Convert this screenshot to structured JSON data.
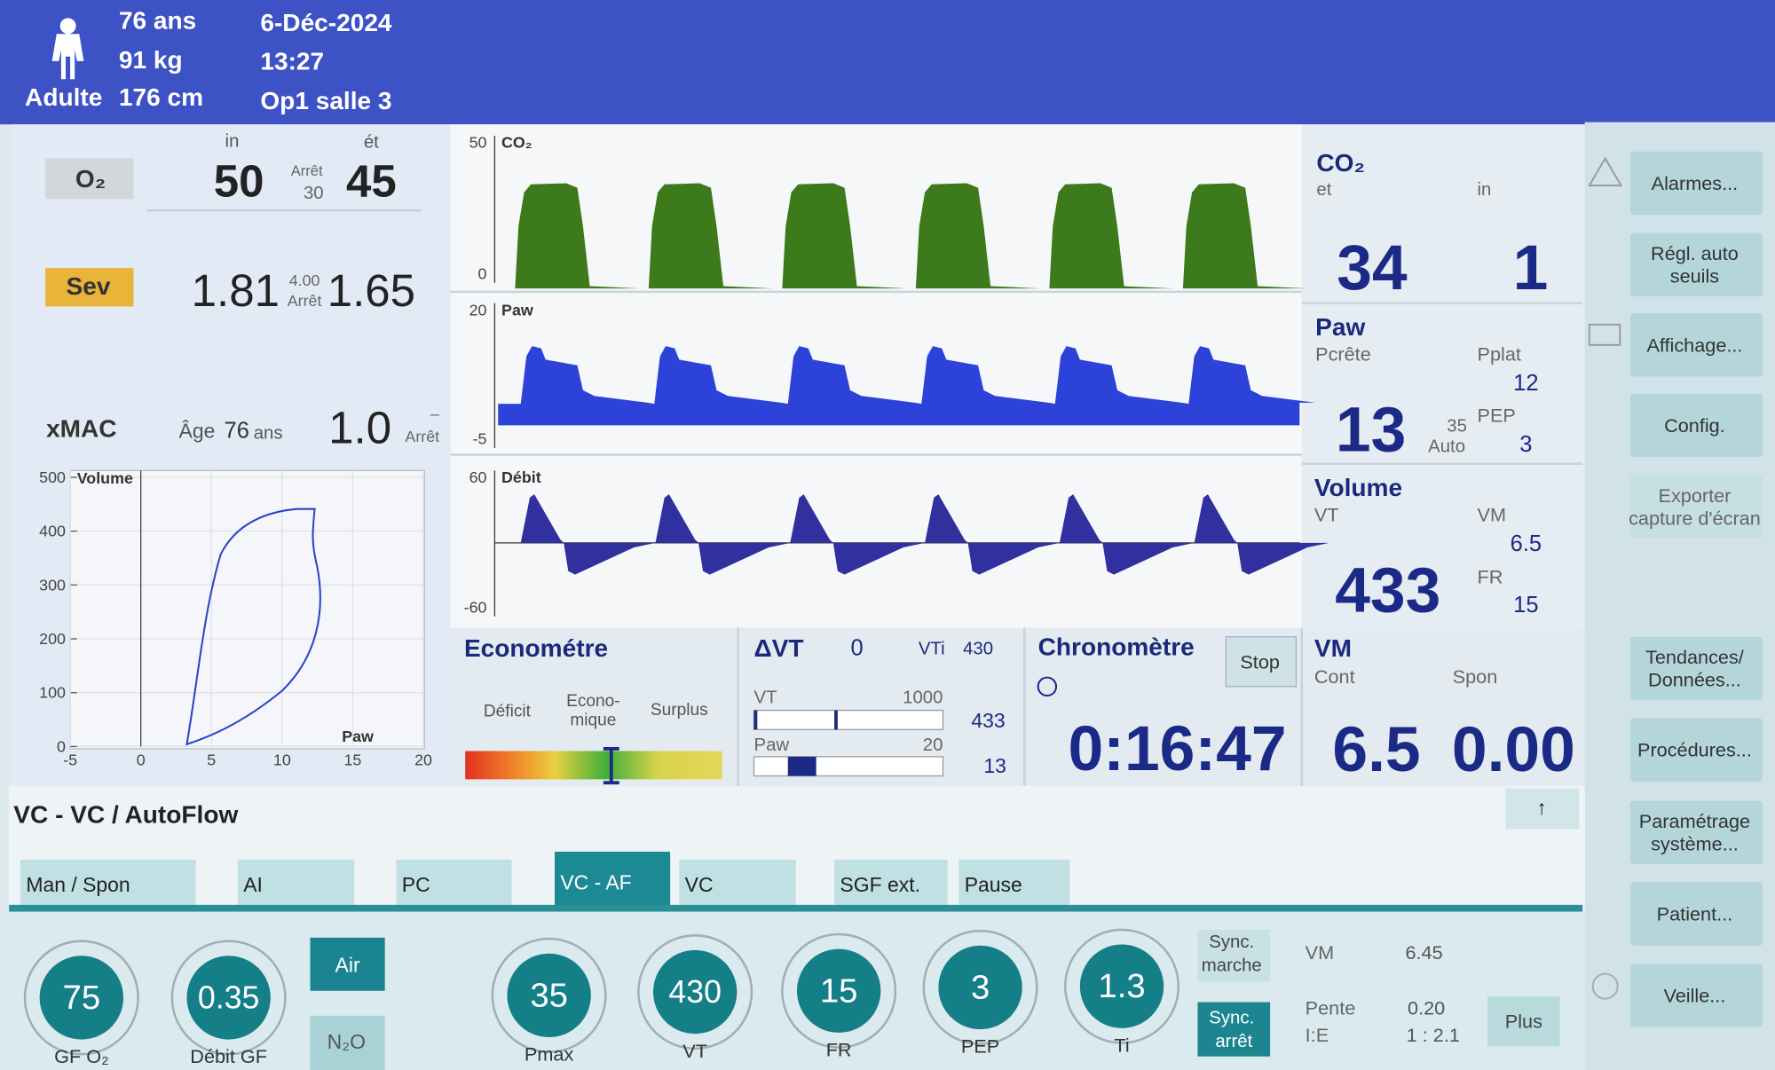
{
  "header": {
    "age": "76 ans",
    "weight": "91 kg",
    "patient_type": "Adulte",
    "height": "176 cm",
    "date": "6-Déc-2024",
    "time": "13:27",
    "location": "Op1 salle 3"
  },
  "gases": {
    "in_label": "in",
    "et_label": "ét",
    "o2": {
      "label": "O₂",
      "in": "50",
      "stop_label": "Arrêt",
      "stop_value": "30",
      "et": "45"
    },
    "sev": {
      "label": "Sev",
      "in": "1.81",
      "limit": "4.00",
      "stop_label": "Arrêt",
      "et": "1.65"
    },
    "xmac": {
      "label": "xMAC",
      "age_label": "Âge",
      "age": "76",
      "age_unit": "ans",
      "value": "1.0",
      "dash": "–",
      "stop_label": "Arrêt"
    }
  },
  "loop": {
    "title": "Volume",
    "x_label": "Paw",
    "xlim": [
      -5,
      20
    ],
    "ylim": [
      0,
      500
    ],
    "xticks": [
      -5,
      0,
      5,
      10,
      15,
      20
    ],
    "yticks": [
      0,
      100,
      200,
      300,
      400,
      500
    ]
  },
  "waves": {
    "co2": {
      "label": "CO₂",
      "yticks": [
        0,
        50
      ]
    },
    "paw": {
      "label": "Paw",
      "yticks": [
        -5,
        20
      ]
    },
    "flow": {
      "label": "Débit",
      "yticks": [
        -60,
        60
      ]
    }
  },
  "readouts": {
    "co2": {
      "title": "CO₂",
      "et_label": "et",
      "in_label": "in",
      "et": "34",
      "in": "1"
    },
    "paw": {
      "title": "Paw",
      "peak_label": "Pcrête",
      "pplat_label": "Pplat",
      "pplat": "12",
      "pep_label": "PEP",
      "pep": "3",
      "limit": "35",
      "limit_mode": "Auto",
      "peak": "13"
    },
    "volume": {
      "title": "Volume",
      "vt_label": "VT",
      "vm_label": "VM",
      "vm": "6.5",
      "fr_label": "FR",
      "fr": "15",
      "vt": "433"
    }
  },
  "econometer": {
    "title": "Econométre",
    "deficit": "Déficit",
    "economy": [
      "Econo-",
      "mique"
    ],
    "surplus": "Surplus"
  },
  "delta_vt": {
    "title": "ΔVT",
    "value": "0",
    "vti_label": "VTi",
    "vti": "430",
    "vt_label": "VT",
    "vt_max": "1000",
    "vt": "433",
    "paw_label": "Paw",
    "paw_max": "20",
    "paw": "13"
  },
  "chrono": {
    "title": "Chronomètre",
    "stop": "Stop",
    "time": "0:16:47"
  },
  "vm": {
    "title": "VM",
    "cont_label": "Cont",
    "spon_label": "Spon",
    "cont": "6.5",
    "spon": "0.00"
  },
  "side_buttons": [
    [
      "Alarmes..."
    ],
    [
      "Régl. auto",
      "seuils"
    ],
    [
      "Affichage..."
    ],
    [
      "Config."
    ],
    [
      "Exporter",
      "capture d'écran"
    ],
    [
      "Tendances/",
      "Données..."
    ],
    [
      "Procédures..."
    ],
    [
      "Paramétrage",
      "système..."
    ],
    [
      "Patient..."
    ],
    [
      "Veille..."
    ]
  ],
  "mode": {
    "title": "VC - VC / AutoFlow",
    "up": "↑"
  },
  "tabs": [
    "Man / Spon",
    "AI",
    "PC",
    "VC - AF",
    "VC",
    "SGF ext.",
    "Pause"
  ],
  "knobs": [
    {
      "value": "75",
      "label": "GF O₂"
    },
    {
      "value": "0.35",
      "label": "Débit GF"
    },
    {
      "value": "35",
      "label": "Pmax"
    },
    {
      "value": "430",
      "label": "VT"
    },
    {
      "value": "15",
      "label": "FR"
    },
    {
      "value": "3",
      "label": "PEP"
    },
    {
      "value": "1.3",
      "label": "Ti"
    }
  ],
  "gas_buttons": [
    "Air",
    "N₂O"
  ],
  "sync": {
    "on": [
      "Sync.",
      "marche"
    ],
    "off": [
      "Sync.",
      "arrêt"
    ]
  },
  "settings": {
    "vm_label": "VM",
    "vm": "6.45",
    "slope_label": "Pente",
    "slope": "0.20",
    "ie_label": "I:E",
    "ie": "1 : 2.1",
    "more": "Plus"
  }
}
